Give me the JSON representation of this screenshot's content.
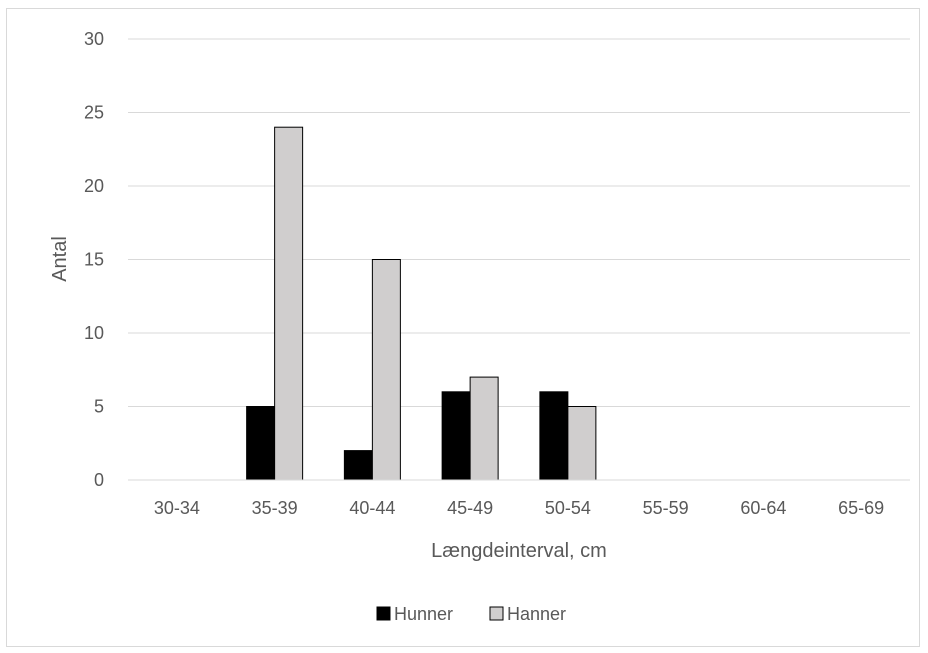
{
  "chart_data": {
    "type": "bar",
    "title": "",
    "xlabel": "Længdeinterval, cm",
    "ylabel": "Antal",
    "categories": [
      "30-34",
      "35-39",
      "40-44",
      "45-49",
      "50-54",
      "55-59",
      "60-64",
      "65-69"
    ],
    "series": [
      {
        "name": "Hunner",
        "color": "#000000",
        "values": [
          0,
          5,
          2,
          6,
          6,
          0,
          0,
          0
        ]
      },
      {
        "name": "Hanner",
        "color": "#d0cece",
        "values": [
          0,
          24,
          15,
          7,
          5,
          0,
          0,
          0
        ]
      }
    ],
    "ylim": [
      0,
      30
    ],
    "yticks": [
      0,
      5,
      10,
      15,
      20,
      25,
      30
    ],
    "grid": true,
    "legend": "bottom"
  }
}
